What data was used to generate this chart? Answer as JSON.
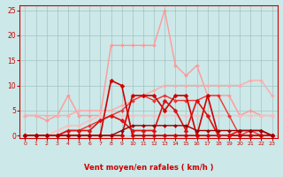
{
  "bg_color": "#cce8e8",
  "grid_color": "#99cccc",
  "xlabel": "Vent moyen/en rafales ( km/h )",
  "xlim": [
    -0.5,
    23.5
  ],
  "ylim": [
    -0.5,
    26
  ],
  "yticks": [
    0,
    5,
    10,
    15,
    20,
    25
  ],
  "xticks": [
    0,
    1,
    2,
    3,
    4,
    5,
    6,
    7,
    8,
    9,
    10,
    11,
    12,
    13,
    14,
    15,
    16,
    17,
    18,
    19,
    20,
    21,
    22,
    23
  ],
  "series": [
    {
      "x": [
        0,
        1,
        2,
        3,
        4,
        5,
        6,
        7,
        8,
        9,
        10,
        11,
        12,
        13,
        14,
        15,
        16,
        17,
        18,
        19,
        20,
        21,
        22,
        23
      ],
      "y": [
        4,
        4,
        3,
        4,
        8,
        4,
        4,
        4,
        18,
        18,
        18,
        18,
        18,
        25,
        14,
        12,
        14,
        8,
        8,
        8,
        4,
        5,
        4,
        4
      ],
      "color": "#ff9999",
      "lw": 1.0,
      "marker": "D",
      "ms": 2.0
    },
    {
      "x": [
        0,
        1,
        2,
        3,
        4,
        5,
        6,
        7,
        8,
        9,
        10,
        11,
        12,
        13,
        14,
        15,
        16,
        17,
        18,
        19,
        20,
        21,
        22,
        23
      ],
      "y": [
        4,
        4,
        4,
        4,
        4,
        5,
        5,
        5,
        5,
        6,
        7,
        8,
        9,
        10,
        10,
        10,
        10,
        10,
        10,
        10,
        10,
        11,
        11,
        8
      ],
      "color": "#ffaaaa",
      "lw": 1.0,
      "marker": "D",
      "ms": 2.0
    },
    {
      "x": [
        0,
        1,
        2,
        3,
        4,
        5,
        6,
        7,
        8,
        9,
        10,
        11,
        12,
        13,
        14,
        15,
        16,
        17,
        18,
        19,
        20,
        21,
        22,
        23
      ],
      "y": [
        0,
        0,
        0,
        1,
        2,
        2,
        3,
        4,
        4,
        4,
        4,
        4,
        4,
        4,
        4,
        4,
        4,
        4,
        4,
        4,
        4,
        4,
        4,
        4
      ],
      "color": "#ffbbbb",
      "lw": 1.0,
      "marker": "D",
      "ms": 2.0
    },
    {
      "x": [
        0,
        1,
        2,
        3,
        4,
        5,
        6,
        7,
        8,
        9,
        10,
        11,
        12,
        13,
        14,
        15,
        16,
        17,
        18,
        19,
        20,
        21,
        22,
        23
      ],
      "y": [
        0,
        0,
        0,
        0,
        1,
        1,
        2,
        3,
        4,
        5,
        7,
        8,
        7,
        8,
        7,
        7,
        7,
        8,
        8,
        4,
        0,
        1,
        0,
        0
      ],
      "color": "#ee3333",
      "lw": 1.0,
      "marker": "D",
      "ms": 2.0
    },
    {
      "x": [
        0,
        1,
        2,
        3,
        4,
        5,
        6,
        7,
        8,
        9,
        10,
        11,
        12,
        13,
        14,
        15,
        16,
        17,
        18,
        19,
        20,
        21,
        22,
        23
      ],
      "y": [
        0,
        0,
        0,
        0,
        0,
        0,
        0,
        0,
        11,
        10,
        0,
        0,
        0,
        0,
        0,
        0,
        0,
        0,
        0,
        0,
        0,
        0,
        0,
        0
      ],
      "color": "#cc0000",
      "lw": 1.2,
      "marker": "D",
      "ms": 2.5
    },
    {
      "x": [
        0,
        1,
        2,
        3,
        4,
        5,
        6,
        7,
        8,
        9,
        10,
        11,
        12,
        13,
        14,
        15,
        16,
        17,
        18,
        19,
        20,
        21,
        22,
        23
      ],
      "y": [
        0,
        0,
        0,
        0,
        0,
        0,
        0,
        0,
        0,
        0,
        8,
        8,
        8,
        5,
        8,
        8,
        0,
        8,
        0,
        0,
        0,
        0,
        0,
        0
      ],
      "color": "#cc0000",
      "lw": 1.2,
      "marker": "D",
      "ms": 2.5
    },
    {
      "x": [
        0,
        1,
        2,
        3,
        4,
        5,
        6,
        7,
        8,
        9,
        10,
        11,
        12,
        13,
        14,
        15,
        16,
        17,
        18,
        19,
        20,
        21,
        22,
        23
      ],
      "y": [
        0,
        0,
        0,
        0,
        1,
        1,
        1,
        3,
        4,
        3,
        1,
        1,
        1,
        7,
        5,
        1,
        7,
        4,
        0,
        0,
        1,
        1,
        1,
        0
      ],
      "color": "#dd1111",
      "lw": 1.2,
      "marker": "D",
      "ms": 2.5
    },
    {
      "x": [
        0,
        1,
        2,
        3,
        4,
        5,
        6,
        7,
        8,
        9,
        10,
        11,
        12,
        13,
        14,
        15,
        16,
        17,
        18,
        19,
        20,
        21,
        22,
        23
      ],
      "y": [
        0,
        0,
        0,
        0,
        0,
        0,
        0,
        0,
        0,
        1,
        2,
        2,
        2,
        2,
        2,
        2,
        1,
        1,
        1,
        1,
        1,
        1,
        1,
        0
      ],
      "color": "#990000",
      "lw": 1.0,
      "marker": "D",
      "ms": 2.0
    }
  ],
  "arrow_chars": [
    "↙",
    "↓",
    "←",
    "↙",
    "↙",
    "↓",
    "↙",
    "←",
    "↙",
    "←",
    "←",
    "←",
    "←",
    "↙",
    "←",
    "↙",
    "↓",
    "↓",
    "↙",
    "↙",
    "↙",
    "←",
    "→",
    "↗"
  ]
}
